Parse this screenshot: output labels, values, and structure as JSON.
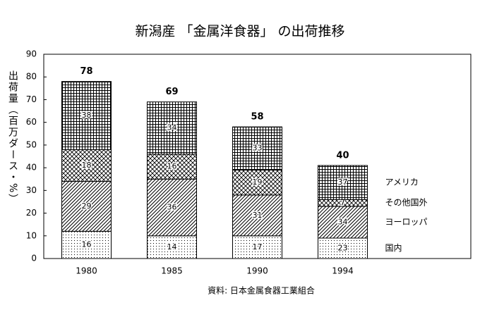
{
  "chart_data": {
    "type": "stacked_bar",
    "title": "新潟産 「金属洋食器」 の出荷推移",
    "y_label": "出荷量（百万ダース・%）",
    "source": "資料: 日本金属食器工業組合",
    "categories": [
      "1980",
      "1985",
      "1990",
      "1994"
    ],
    "totals": [
      78,
      69,
      58,
      40
    ],
    "series": [
      {
        "name": "国内",
        "pattern": "dots",
        "values": [
          12,
          10,
          10,
          9
        ],
        "percent": [
          16,
          14,
          17,
          23
        ]
      },
      {
        "name": "ヨーロッパ",
        "pattern": "hatch",
        "values": [
          22,
          25,
          18,
          14
        ],
        "percent": [
          29,
          36,
          31,
          34
        ]
      },
      {
        "name": "その他国外",
        "pattern": "cross",
        "values": [
          14,
          11,
          11,
          3
        ],
        "percent": [
          18,
          16,
          19,
          7
        ]
      },
      {
        "name": "アメリカ",
        "pattern": "grid",
        "values": [
          30,
          23,
          19,
          15
        ],
        "percent": [
          38,
          34,
          33,
          37
        ]
      }
    ],
    "ylim": [
      0,
      90
    ],
    "yticks": [
      0,
      10,
      20,
      30,
      40,
      50,
      60,
      70,
      80,
      90
    ]
  }
}
